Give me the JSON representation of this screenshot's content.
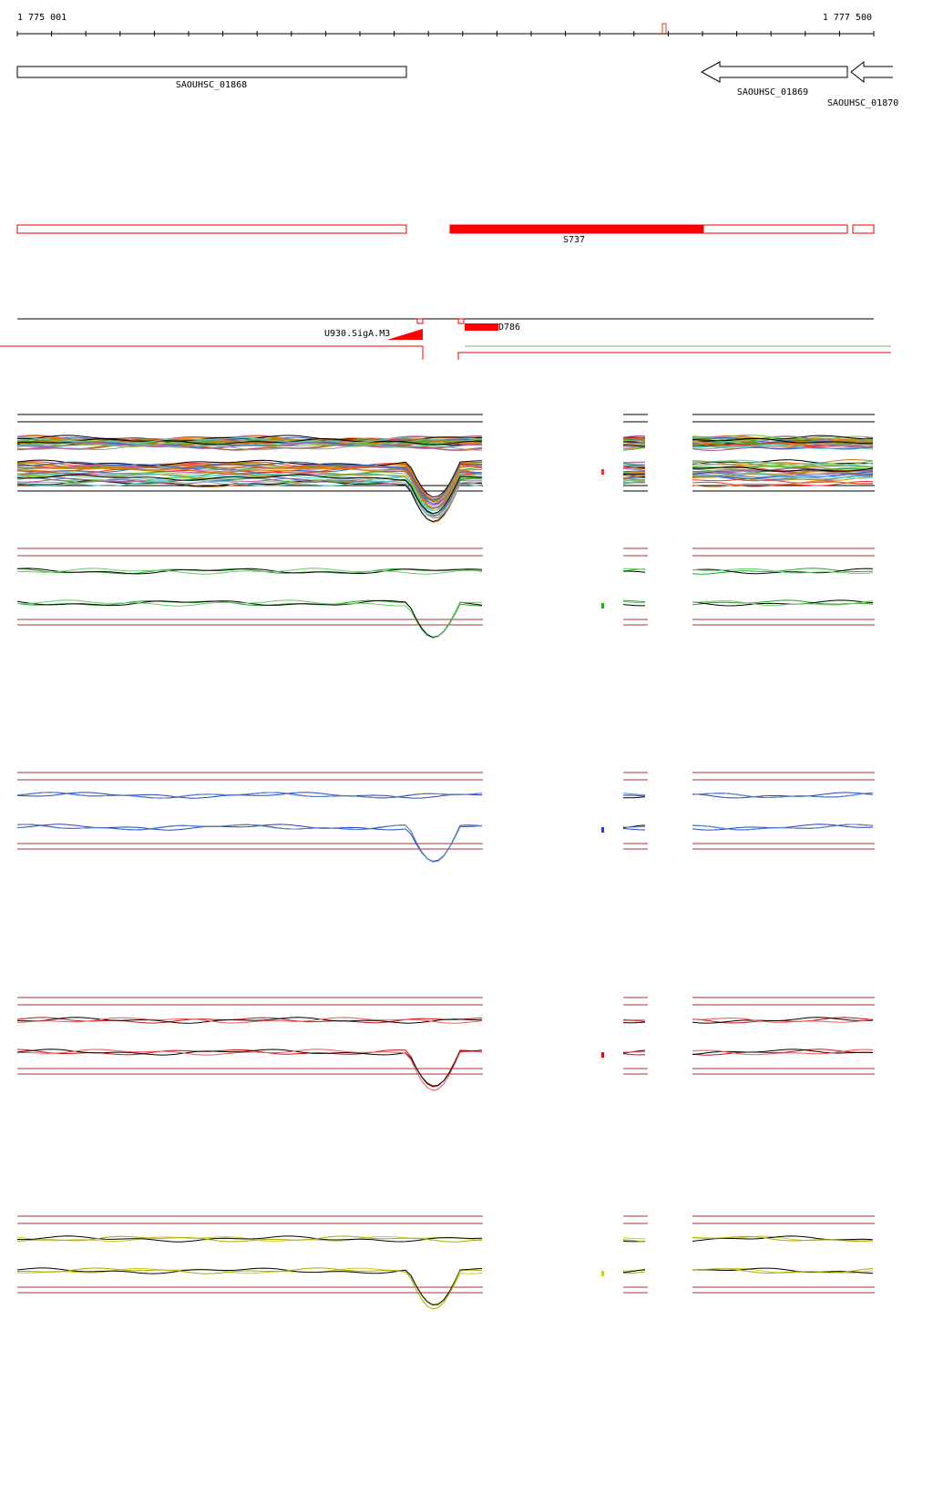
{
  "ruler": {
    "start": "1 775 001",
    "end": "1 777 500"
  },
  "genes": [
    {
      "label": "SAOUHSC_01868"
    },
    {
      "label": "SAOUHSC_01869"
    },
    {
      "label": "SAOUHSC_01870"
    }
  ],
  "transcripts": [
    {
      "label": "S737"
    }
  ],
  "promoters": [
    {
      "label": "U930.SigA.M3"
    },
    {
      "label": "D786"
    }
  ]
}
